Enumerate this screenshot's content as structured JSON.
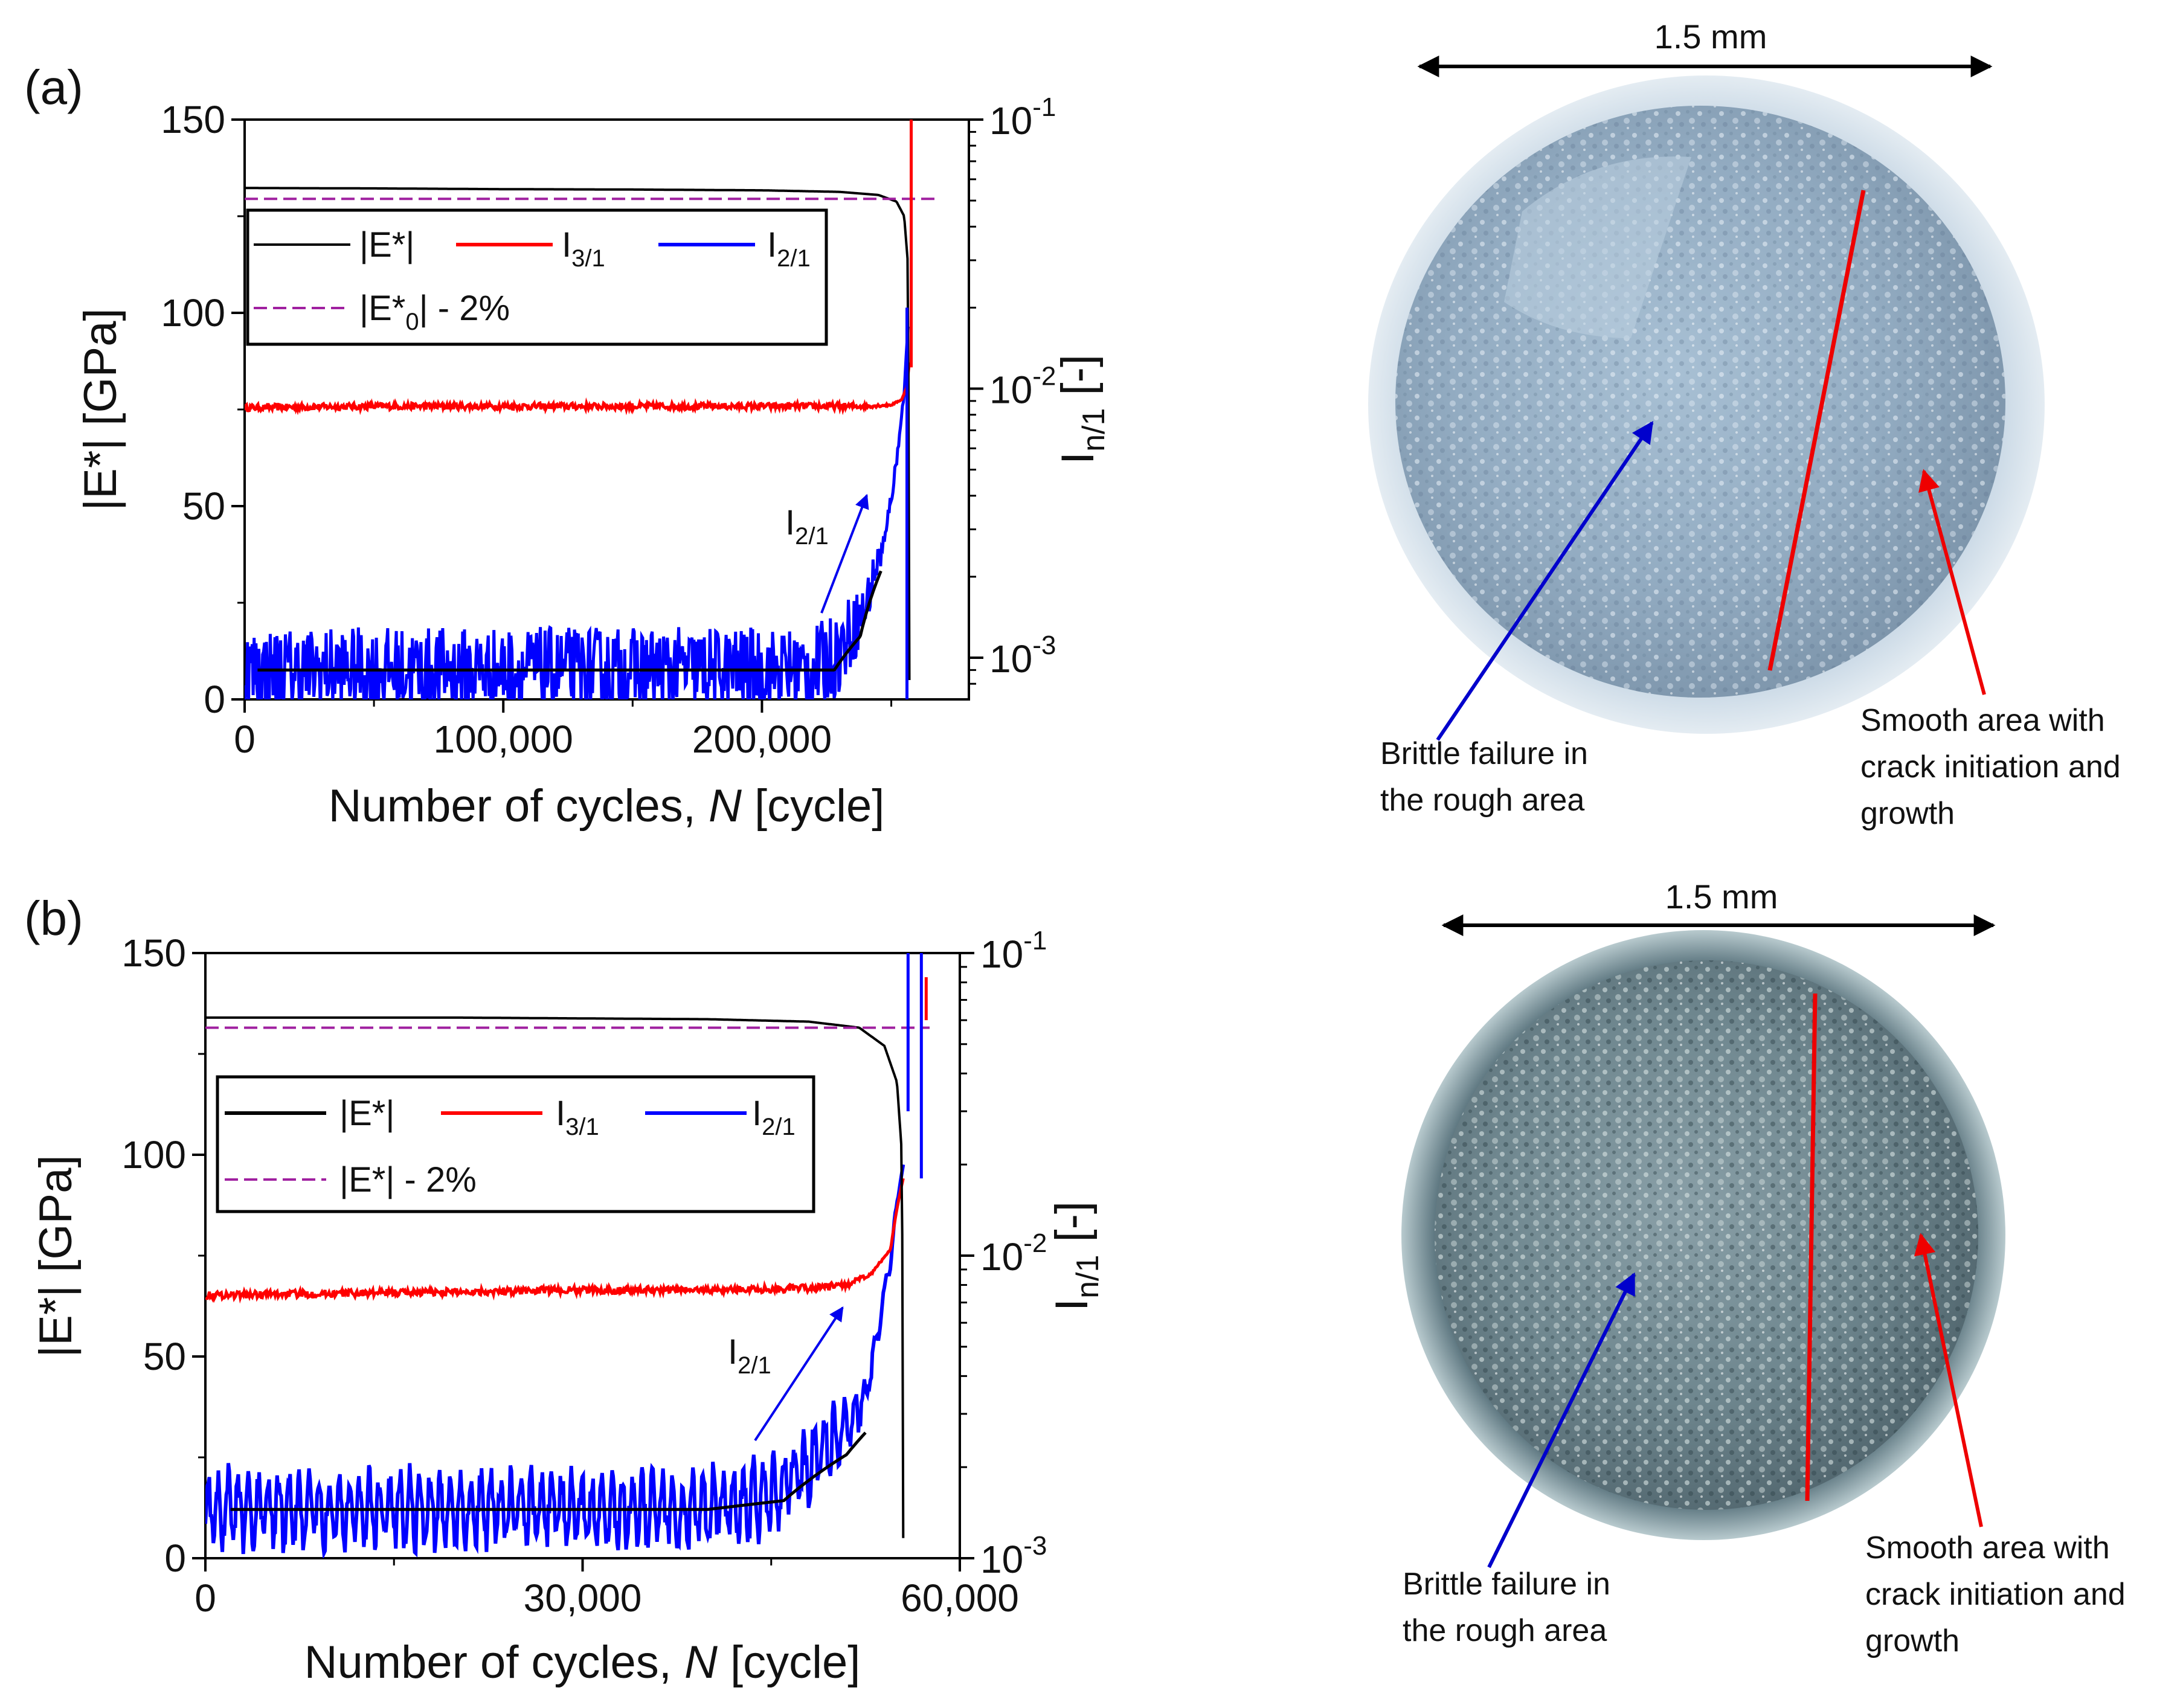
{
  "chart_data": [
    {
      "panel": "a",
      "panel_label": "(a)",
      "type": "line",
      "xlabel_main": "Number of cycles, ",
      "xlabel_var": "N",
      "xlabel_unit": " [cycle]",
      "ylabel_left": "|E*| [GPa]",
      "ylabel_right_base": "I",
      "ylabel_right_sub": "n/1",
      "ylabel_right_unit": " [-]",
      "xlim": [
        0,
        280000
      ],
      "ylim_left": [
        0,
        150
      ],
      "ylim_right_log": [
        0.0007,
        0.1
      ],
      "x_ticks": [
        0,
        100000,
        200000
      ],
      "x_tick_labels": [
        "0",
        "100,000",
        "200,000"
      ],
      "y_ticks_left": [
        0,
        50,
        100,
        150
      ],
      "y_tick_labels_left": [
        "0",
        "50",
        "100",
        "150"
      ],
      "y_ticks_right": [
        0.001,
        0.01,
        0.1
      ],
      "y_tick_labels_right": [
        {
          "base": "10",
          "exp": "-3"
        },
        {
          "base": "10",
          "exp": "-2"
        },
        {
          "base": "10",
          "exp": "-1"
        }
      ],
      "failure_cycle": 257000,
      "threshold_gpa": 129.5,
      "legend": {
        "E": "|E*|",
        "I31_base": "I",
        "I31_sub": "3/1",
        "I21_base": "I",
        "I21_sub": "2/1",
        "threshold_pre": "|E*",
        "threshold_sub": "0",
        "threshold_post": "| - 2%"
      },
      "annotation": {
        "base": "I",
        "sub": "2/1"
      },
      "series": [
        {
          "name": "|E*|",
          "color": "#000000",
          "axis": "left",
          "x": [
            0,
            50000,
            100000,
            150000,
            200000,
            230000,
            245000,
            252000,
            255000,
            256500,
            257000
          ],
          "y": [
            132.3,
            132.2,
            132.0,
            131.9,
            131.7,
            131.3,
            130.5,
            128.8,
            125.0,
            112.0,
            5.0
          ]
        },
        {
          "name": "I3/1",
          "color": "#ff0000",
          "axis": "right",
          "x": [
            0,
            50000,
            100000,
            150000,
            200000,
            240000,
            250000,
            254000,
            256000,
            257000
          ],
          "y": [
            0.0085,
            0.0086,
            0.0086,
            0.0086,
            0.0086,
            0.0086,
            0.0087,
            0.0091,
            0.0101,
            0.0125
          ]
        },
        {
          "name": "I2/1",
          "color": "#0000ff",
          "axis": "right",
          "x": [
            0,
            50000,
            100000,
            150000,
            200000,
            220000,
            230000,
            240000,
            248000,
            252000,
            255000,
            256500
          ],
          "y": [
            0.0009,
            0.0009,
            0.0009,
            0.0009,
            0.0009,
            0.0009,
            0.00105,
            0.0015,
            0.0028,
            0.0052,
            0.0095,
            0.017
          ]
        },
        {
          "name": "I2/1 trend",
          "color": "#000000",
          "axis": "right",
          "x": [
            5000,
            100000,
            200000,
            228000,
            238000,
            246000
          ],
          "y": [
            0.0009,
            0.0009,
            0.0009,
            0.0009,
            0.0012,
            0.0021
          ]
        }
      ]
    },
    {
      "panel": "b",
      "panel_label": "(b)",
      "type": "line",
      "xlabel_main": "Number of cycles, ",
      "xlabel_var": "N",
      "xlabel_unit": " [cycle]",
      "ylabel_left": "|E*| [GPa]",
      "ylabel_right_base": "I",
      "ylabel_right_sub": "n/1",
      "ylabel_right_unit": " [-]",
      "xlim": [
        0,
        60000
      ],
      "ylim_left": [
        0,
        150
      ],
      "ylim_right_log": [
        0.001,
        0.1
      ],
      "x_ticks": [
        0,
        30000,
        60000
      ],
      "x_tick_labels": [
        "0",
        "30,000",
        "60,000"
      ],
      "y_ticks_left": [
        0,
        50,
        100,
        150
      ],
      "y_tick_labels_left": [
        "0",
        "50",
        "100",
        "150"
      ],
      "y_ticks_right": [
        0.001,
        0.01,
        0.1
      ],
      "y_tick_labels_right": [
        {
          "base": "10",
          "exp": "-3"
        },
        {
          "base": "10",
          "exp": "-2"
        },
        {
          "base": "10",
          "exp": "-1"
        }
      ],
      "failure_cycle": 55500,
      "threshold_gpa": 131.5,
      "legend": {
        "E": "|E*|",
        "I31_base": "I",
        "I31_sub": "3/1",
        "I21_base": "I",
        "I21_sub": "2/1",
        "threshold_pre": "|E*",
        "threshold_sub": "",
        "threshold_post": "| - 2%"
      },
      "annotation": {
        "base": "I",
        "sub": "2/1"
      },
      "series": [
        {
          "name": "|E*|",
          "color": "#000000",
          "axis": "left",
          "x": [
            0,
            10000,
            20000,
            30000,
            40000,
            48000,
            52000,
            54000,
            55000,
            55400,
            55500
          ],
          "y": [
            134.0,
            134.0,
            134.0,
            133.8,
            133.6,
            133.0,
            131.5,
            127.0,
            118.0,
            100.0,
            5.0
          ]
        },
        {
          "name": "I3/1",
          "color": "#ff0000",
          "axis": "right",
          "x": [
            0,
            10000,
            20000,
            30000,
            40000,
            48000,
            51000,
            53000,
            54500,
            55500
          ],
          "y": [
            0.0074,
            0.0075,
            0.0076,
            0.0077,
            0.0077,
            0.0078,
            0.008,
            0.0087,
            0.0105,
            0.018
          ]
        },
        {
          "name": "I2/1",
          "color": "#0000ff",
          "axis": "right",
          "x": [
            0,
            10000,
            20000,
            30000,
            40000,
            45000,
            48000,
            51000,
            52500,
            53500,
            54500,
            55500
          ],
          "y": [
            0.00145,
            0.00145,
            0.00145,
            0.00145,
            0.00145,
            0.0016,
            0.002,
            0.0027,
            0.0034,
            0.0055,
            0.0095,
            0.02
          ]
        },
        {
          "name": "I2/1 trend",
          "color": "#000000",
          "axis": "right",
          "x": [
            2000,
            20000,
            40000,
            46000,
            51000,
            52500
          ],
          "y": [
            0.00145,
            0.00145,
            0.00145,
            0.00155,
            0.0022,
            0.0026
          ]
        }
      ]
    }
  ],
  "photos": [
    {
      "panel": "a",
      "scale_label": "1.5 mm",
      "left_caption": [
        "Brittle failure in",
        "the rough area"
      ],
      "right_caption": [
        "Smooth area with",
        "crack initiation and",
        "growth"
      ],
      "arrow_left_color": "#0000cc",
      "arrow_right_color": "#ee0000"
    },
    {
      "panel": "b",
      "scale_label": "1.5 mm",
      "left_caption": [
        "Brittle failure in",
        "the rough area"
      ],
      "right_caption": [
        "Smooth area with",
        "crack initiation and",
        "growth"
      ],
      "arrow_left_color": "#0000cc",
      "arrow_right_color": "#ee0000"
    }
  ]
}
